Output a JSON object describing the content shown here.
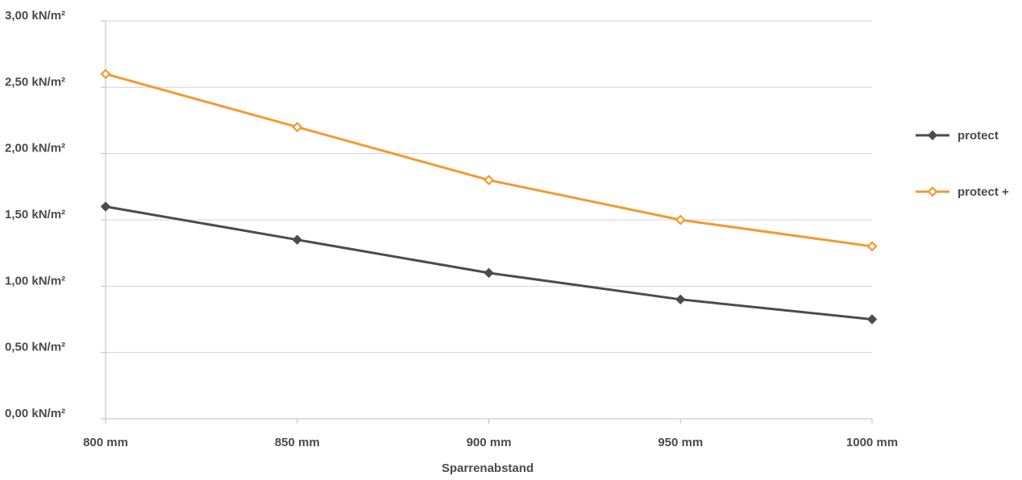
{
  "chart_data": {
    "type": "line",
    "title": "",
    "xlabel": "Sparrenabstand",
    "ylabel": "",
    "categories": [
      "800 mm",
      "850 mm",
      "900 mm",
      "950 mm",
      "1000 mm"
    ],
    "y_tick_values": [
      0,
      0.5,
      1.0,
      1.5,
      2.0,
      2.5,
      3.0
    ],
    "y_tick_labels": [
      "0,00 kN/m²",
      "0,50 kN/m²",
      "1,00 kN/m²",
      "1,50 kN/m²",
      "2,00 kN/m²",
      "2,50 kN/m²",
      "3,00 kN/m²"
    ],
    "ylim": [
      0,
      3.0
    ],
    "grid": true,
    "legend_position": "right",
    "series": [
      {
        "name": "protect",
        "values": [
          1.6,
          1.35,
          1.1,
          0.9,
          0.75
        ],
        "color": "#4a4c4e",
        "marker": "filled-diamond"
      },
      {
        "name": "protect +",
        "values": [
          2.6,
          2.2,
          1.8,
          1.5,
          1.3
        ],
        "color": "#f39a32",
        "marker": "hollow-diamond"
      }
    ]
  }
}
